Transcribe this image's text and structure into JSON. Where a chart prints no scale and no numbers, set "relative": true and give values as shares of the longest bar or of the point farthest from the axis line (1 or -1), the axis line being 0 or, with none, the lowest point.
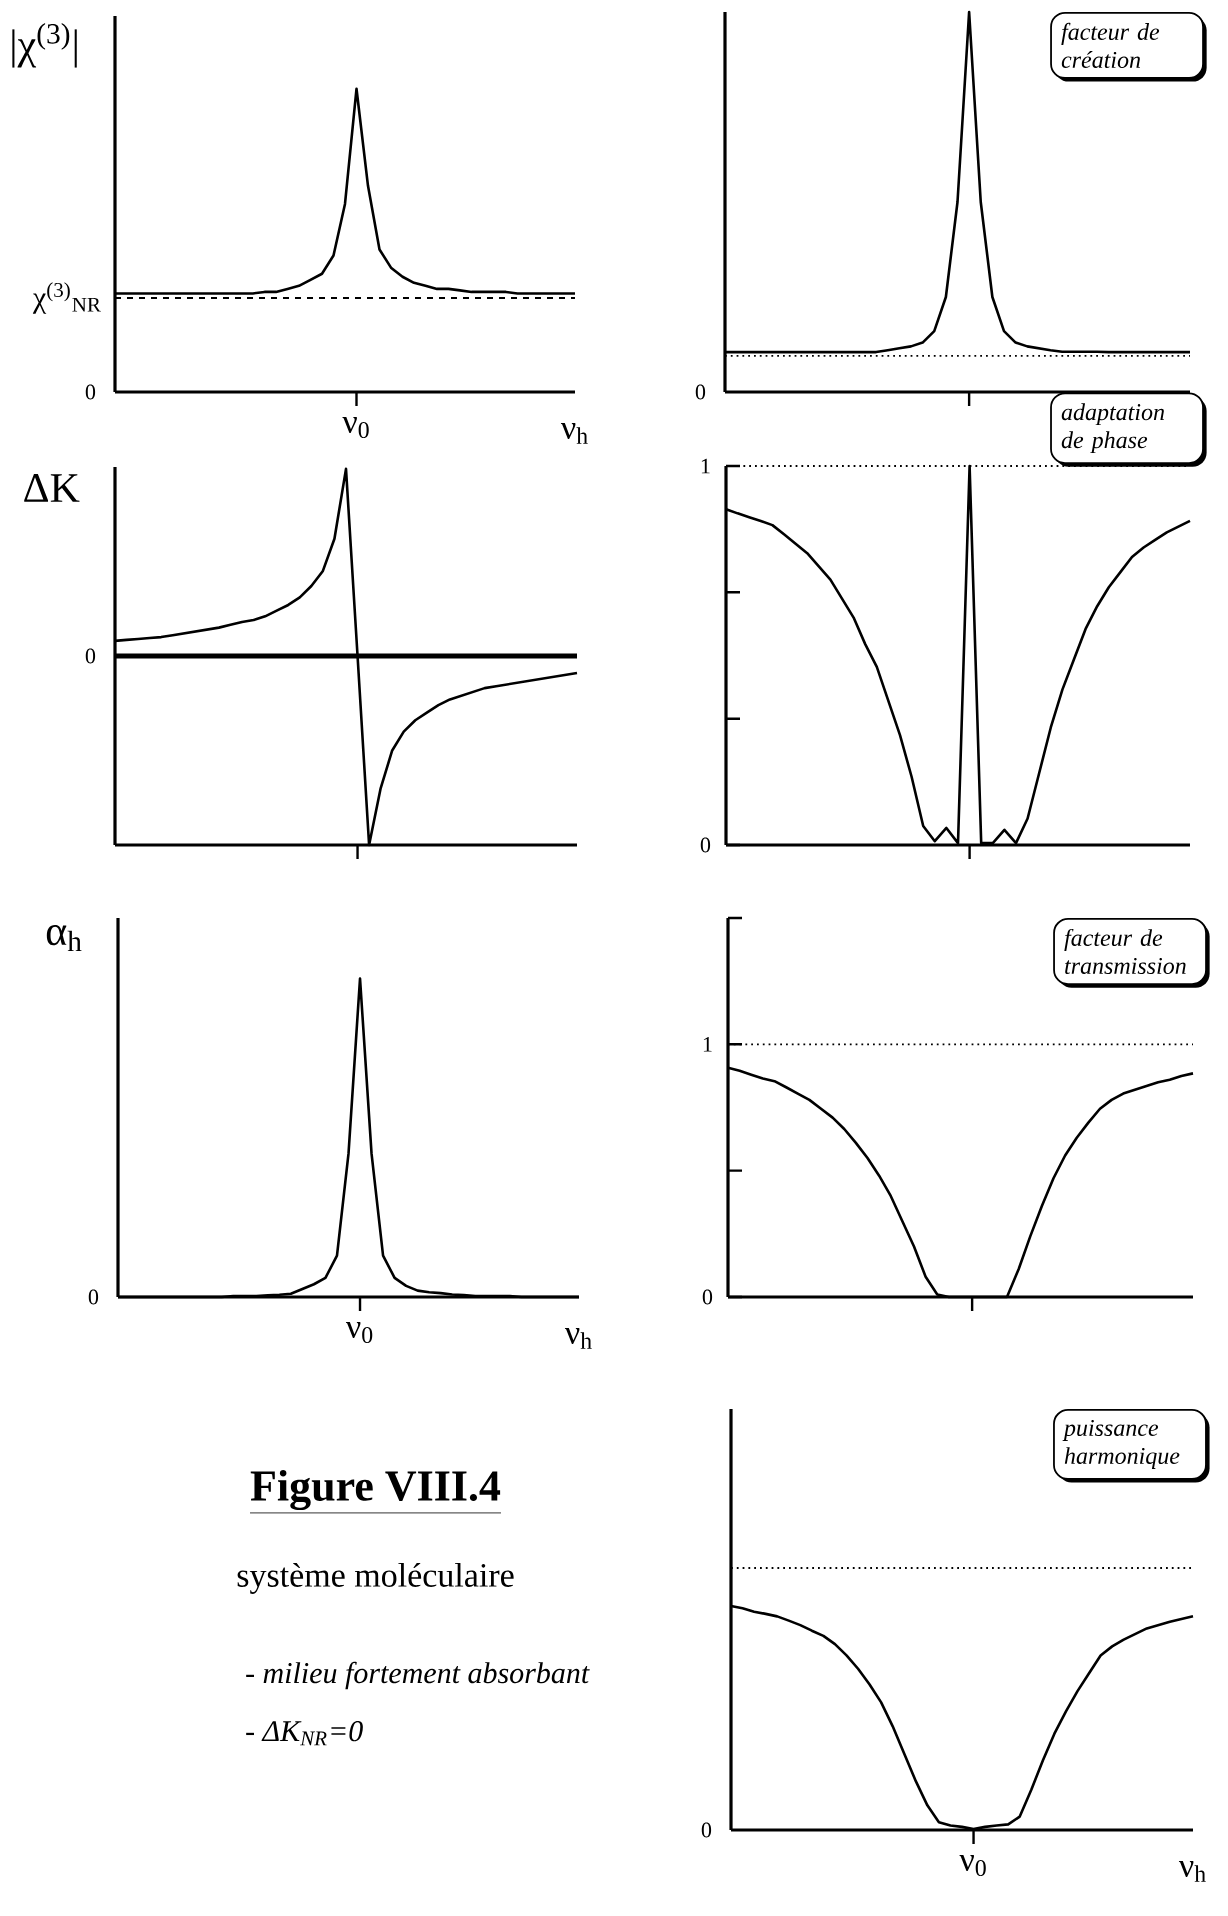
{
  "chart_data": [
    {
      "type": "line",
      "relative": true,
      "ylabel": "|χ$^{(3)}$|",
      "xlabel": "ν$_{h}$",
      "categories": [
        null,
        null,
        null,
        null,
        null,
        null,
        null,
        null,
        null,
        null,
        null,
        null,
        null,
        null,
        null,
        null,
        null,
        null,
        null,
        null,
        null,
        null,
        null,
        null,
        null,
        null,
        null,
        null,
        null,
        null,
        null,
        null,
        null,
        null,
        null,
        null,
        null,
        null,
        null,
        null,
        null
      ],
      "series": [
        {
          "color": "#000000",
          "values": [
            0.325,
            0.325,
            0.325,
            0.325,
            0.325,
            0.325,
            0.325,
            0.325,
            0.325,
            0.325,
            0.325,
            0.325,
            0.325,
            0.33,
            0.33,
            0.34,
            0.35,
            0.37,
            0.39,
            0.45,
            0.62,
            1.0,
            0.68,
            0.47,
            0.41,
            0.38,
            0.36,
            0.35,
            0.34,
            0.34,
            0.335,
            0.33,
            0.33,
            0.33,
            0.33,
            0.325,
            0.325,
            0.325,
            0.325,
            0.325,
            0.325
          ]
        }
      ],
      "ref_lines": [
        {
          "axis": "y",
          "value": 0.31,
          "label": "χ$^{(3)}$$_{NR}$",
          "line_style": "dashed"
        }
      ],
      "annotations": [
        "ν$_{0}$",
        "0"
      ]
    },
    {
      "type": "line",
      "relative": true,
      "categories": [
        null,
        null,
        null,
        null,
        null,
        null,
        null,
        null,
        null,
        null,
        null,
        null,
        null,
        null,
        null,
        null,
        null,
        null,
        null,
        null,
        null,
        null,
        null,
        null,
        null,
        null,
        null,
        null,
        null,
        null,
        null,
        null,
        null,
        null,
        null,
        null,
        null,
        null,
        null,
        null,
        null
      ],
      "series": [
        {
          "color": "#000000",
          "values": [
            0.105,
            0.105,
            0.105,
            0.105,
            0.105,
            0.105,
            0.105,
            0.105,
            0.105,
            0.105,
            0.105,
            0.105,
            0.105,
            0.105,
            0.11,
            0.115,
            0.12,
            0.13,
            0.16,
            0.25,
            0.5,
            1.0,
            0.5,
            0.25,
            0.16,
            0.13,
            0.12,
            0.115,
            0.11,
            0.106,
            0.106,
            0.106,
            0.106,
            0.105,
            0.105,
            0.105,
            0.105,
            0.105,
            0.105,
            0.105,
            0.105
          ]
        }
      ],
      "ref_lines": [
        {
          "axis": "y",
          "value": 0.095,
          "line_style": "dotted"
        }
      ],
      "annotations": [
        "0",
        "facteur de création"
      ]
    },
    {
      "type": "line",
      "relative": true,
      "ylabel": "ΔK",
      "categories": [
        null,
        null,
        null,
        null,
        null,
        null,
        null,
        null,
        null,
        null,
        null,
        null,
        null,
        null,
        null,
        null,
        null,
        null,
        null,
        null,
        null,
        null,
        null,
        null,
        null,
        null,
        null,
        null,
        null,
        null,
        null,
        null,
        null,
        null,
        null,
        null,
        null,
        null,
        null,
        null,
        null
      ],
      "series": [
        {
          "color": "#000000",
          "values": [
            0.08,
            0.085,
            0.09,
            0.095,
            0.1,
            0.11,
            0.12,
            0.13,
            0.14,
            0.15,
            0.165,
            0.18,
            0.19,
            0.21,
            0.24,
            0.27,
            0.31,
            0.37,
            0.45,
            0.62,
            0.99,
            0,
            -1,
            -0.7,
            -0.5,
            -0.4,
            -0.34,
            -0.3,
            -0.26,
            -0.23,
            -0.21,
            -0.19,
            -0.17,
            -0.16,
            -0.15,
            -0.14,
            -0.13,
            -0.12,
            -0.11,
            -0.1,
            -0.09
          ]
        }
      ],
      "annotations": [
        "0"
      ]
    },
    {
      "type": "line",
      "ylim": [
        0,
        1
      ],
      "yticks": [
        0,
        {
          "value": 0.333,
          "label": null
        },
        {
          "value": 0.667,
          "label": null
        },
        1
      ],
      "categories": [
        null,
        null,
        null,
        null,
        null,
        null,
        null,
        null,
        null,
        null,
        null,
        null,
        null,
        null,
        null,
        null,
        null,
        null,
        null,
        null,
        null,
        null,
        null,
        null,
        null,
        null,
        null,
        null,
        null,
        null,
        null,
        null,
        null,
        null,
        null,
        null,
        null,
        null,
        null,
        null,
        null
      ],
      "series": [
        {
          "color": "#000000",
          "values": [
            0.886,
            0.875,
            0.865,
            0.855,
            0.844,
            0.82,
            0.795,
            0.77,
            0.735,
            0.7,
            0.65,
            0.6,
            0.53,
            0.47,
            0.38,
            0.29,
            0.18,
            0.05,
            0.01,
            0.045,
            0.005,
            1,
            0.005,
            0.005,
            0.04,
            0.005,
            0.07,
            0.19,
            0.31,
            0.41,
            0.49,
            0.57,
            0.63,
            0.68,
            0.72,
            0.76,
            0.785,
            0.805,
            0.825,
            0.84,
            0.855
          ]
        }
      ],
      "ref_lines": [
        {
          "axis": "y",
          "value": 1,
          "line_style": "dotted"
        }
      ],
      "annotations": [
        "adaptation de phase"
      ]
    },
    {
      "type": "line",
      "relative": true,
      "ylabel": "α$_{h}$",
      "xlabel": "ν$_{h}$",
      "categories": [
        null,
        null,
        null,
        null,
        null,
        null,
        null,
        null,
        null,
        null,
        null,
        null,
        null,
        null,
        null,
        null,
        null,
        null,
        null,
        null,
        null,
        null,
        null,
        null,
        null,
        null,
        null,
        null,
        null,
        null,
        null,
        null,
        null,
        null,
        null,
        null,
        null,
        null,
        null,
        null,
        null
      ],
      "series": [
        {
          "color": "#000000",
          "values": [
            0,
            0,
            0,
            0,
            0,
            0,
            0,
            0,
            0,
            0,
            0.003,
            0.003,
            0.003,
            0.005,
            0.007,
            0.01,
            0.025,
            0.04,
            0.06,
            0.13,
            0.45,
            1.0,
            0.45,
            0.13,
            0.06,
            0.035,
            0.02,
            0.015,
            0.012,
            0.008,
            0.006,
            0.003,
            0.003,
            0.003,
            0.003,
            0,
            0,
            0,
            0,
            0,
            0
          ]
        }
      ],
      "annotations": [
        "ν$_{0}$",
        "0"
      ]
    },
    {
      "type": "line",
      "ylim": [
        0,
        1.5
      ],
      "yticks": [
        0,
        {
          "value": 0.5,
          "label": null
        },
        1,
        {
          "value": 1.5,
          "label": null
        }
      ],
      "categories": [
        null,
        null,
        null,
        null,
        null,
        null,
        null,
        null,
        null,
        null,
        null,
        null,
        null,
        null,
        null,
        null,
        null,
        null,
        null,
        null,
        null,
        null,
        null,
        null,
        null,
        null,
        null,
        null,
        null,
        null,
        null,
        null,
        null,
        null,
        null,
        null,
        null,
        null,
        null,
        null,
        null
      ],
      "series": [
        {
          "color": "#000000",
          "values": [
            0.907,
            0.895,
            0.88,
            0.865,
            0.854,
            0.83,
            0.805,
            0.78,
            0.745,
            0.71,
            0.665,
            0.61,
            0.55,
            0.48,
            0.4,
            0.3,
            0.2,
            0.08,
            0.01,
            0,
            0,
            0,
            0,
            0,
            0,
            0.11,
            0.24,
            0.36,
            0.47,
            0.56,
            0.63,
            0.69,
            0.745,
            0.78,
            0.805,
            0.82,
            0.835,
            0.85,
            0.86,
            0.875,
            0.885
          ]
        }
      ],
      "ref_lines": [
        {
          "axis": "y",
          "value": 1,
          "line_style": "dotted"
        }
      ],
      "annotations": [
        "facteur de transmission"
      ]
    },
    {
      "type": "line",
      "relative": true,
      "xlabel": "ν$_{h}$",
      "categories": [
        null,
        null,
        null,
        null,
        null,
        null,
        null,
        null,
        null,
        null,
        null,
        null,
        null,
        null,
        null,
        null,
        null,
        null,
        null,
        null,
        null,
        null,
        null,
        null,
        null,
        null,
        null,
        null,
        null,
        null,
        null,
        null,
        null,
        null,
        null,
        null,
        null,
        null,
        null,
        null,
        null
      ],
      "series": [
        {
          "color": "#000000",
          "values": [
            1.0,
            0.99,
            0.975,
            0.965,
            0.954,
            0.935,
            0.915,
            0.89,
            0.867,
            0.83,
            0.78,
            0.72,
            0.65,
            0.57,
            0.463,
            0.34,
            0.218,
            0.11,
            0.035,
            0.02,
            0.014,
            0.004,
            0.014,
            0.02,
            0.025,
            0.06,
            0.18,
            0.31,
            0.43,
            0.53,
            0.62,
            0.7,
            0.779,
            0.82,
            0.85,
            0.875,
            0.9,
            0.915,
            0.93,
            0.942,
            0.954
          ]
        }
      ],
      "ref_lines": [
        {
          "axis": "y",
          "value": 1.17,
          "line_style": "dotted"
        }
      ],
      "annotations": [
        "ν$_{0}$",
        "0",
        "puissance harmonique"
      ]
    },
    {
      "type": "other",
      "title": "Figure VIII.4",
      "subtitle": "système moléculaire",
      "annotations": [
        "- milieu fortement absorbant",
        "- ΔK$_{NR}$=0"
      ]
    }
  ]
}
